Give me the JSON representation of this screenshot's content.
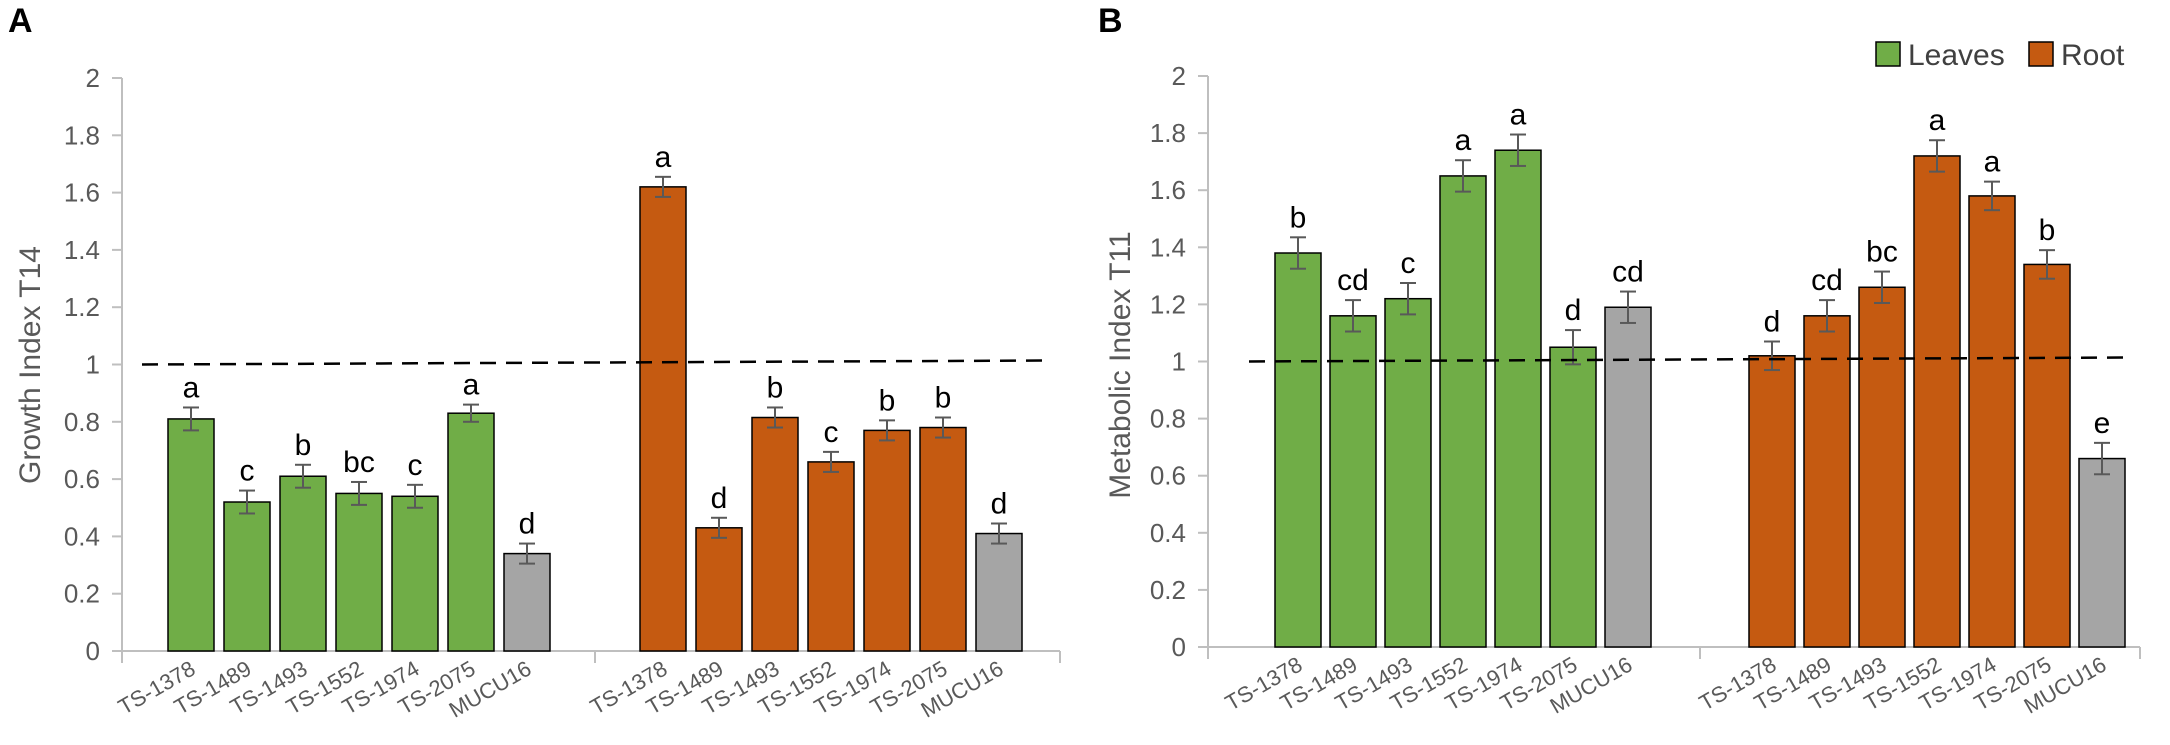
{
  "panels": [
    {
      "letter": "A"
    },
    {
      "letter": "B"
    }
  ],
  "legend": [
    {
      "label": "Leaves",
      "color": "#70AD47"
    },
    {
      "label": "Root",
      "color": "#C55A11"
    }
  ],
  "colors": {
    "leaves": "#70AD47",
    "root": "#C55A11",
    "control": "#A5A5A5",
    "error": "#595959"
  },
  "chart_data": [
    {
      "type": "bar",
      "panel": "A",
      "ylabel": "Growth Index T14",
      "ylim": [
        0,
        2
      ],
      "yticks": [
        "0",
        "0.2",
        "0.4",
        "0.6",
        "0.8",
        "1",
        "1.2",
        "1.4",
        "1.6",
        "1.8",
        "2"
      ],
      "reference_line": 1,
      "groups": [
        {
          "name": "Leaves",
          "categories": [
            "TS-1378",
            "TS-1489",
            "TS-1493",
            "TS-1552",
            "TS-1974",
            "TS-2075",
            "MUCU16"
          ],
          "values": [
            0.81,
            0.52,
            0.61,
            0.55,
            0.54,
            0.83,
            0.34
          ],
          "errors": [
            0.04,
            0.04,
            0.04,
            0.04,
            0.04,
            0.03,
            0.035
          ],
          "letters": [
            "a",
            "c",
            "b",
            "bc",
            "c",
            "a",
            "d"
          ],
          "bar_types": [
            "leaves",
            "leaves",
            "leaves",
            "leaves",
            "leaves",
            "leaves",
            "control"
          ]
        },
        {
          "name": "Root",
          "categories": [
            "TS-1378",
            "TS-1489",
            "TS-1493",
            "TS-1552",
            "TS-1974",
            "TS-2075",
            "MUCU16"
          ],
          "values": [
            1.62,
            0.43,
            0.815,
            0.66,
            0.77,
            0.78,
            0.41
          ],
          "errors": [
            0.035,
            0.035,
            0.035,
            0.035,
            0.035,
            0.035,
            0.035
          ],
          "letters": [
            "a",
            "d",
            "b",
            "c",
            "b",
            "b",
            "d"
          ],
          "bar_types": [
            "root",
            "root",
            "root",
            "root",
            "root",
            "root",
            "control"
          ]
        }
      ]
    },
    {
      "type": "bar",
      "panel": "B",
      "ylabel": "Metabolic Index T11",
      "ylim": [
        0,
        2
      ],
      "yticks": [
        "0",
        "0.2",
        "0.4",
        "0.6",
        "0.8",
        "1",
        "1.2",
        "1.4",
        "1.6",
        "1.8",
        "2"
      ],
      "reference_line": 1,
      "groups": [
        {
          "name": "Leaves",
          "categories": [
            "TS-1378",
            "TS-1489",
            "TS-1493",
            "TS-1552",
            "TS-1974",
            "TS-2075",
            "MUCU16"
          ],
          "values": [
            1.38,
            1.16,
            1.22,
            1.65,
            1.74,
            1.05,
            1.19
          ],
          "errors": [
            0.055,
            0.055,
            0.055,
            0.055,
            0.055,
            0.06,
            0.055
          ],
          "letters": [
            "b",
            "cd",
            "c",
            "a",
            "a",
            "d",
            "cd"
          ],
          "bar_types": [
            "leaves",
            "leaves",
            "leaves",
            "leaves",
            "leaves",
            "leaves",
            "control"
          ]
        },
        {
          "name": "Root",
          "categories": [
            "TS-1378",
            "TS-1489",
            "TS-1493",
            "TS-1552",
            "TS-1974",
            "TS-2075",
            "MUCU16"
          ],
          "values": [
            1.02,
            1.16,
            1.26,
            1.72,
            1.58,
            1.34,
            0.66
          ],
          "errors": [
            0.05,
            0.055,
            0.055,
            0.055,
            0.05,
            0.05,
            0.055
          ],
          "letters": [
            "d",
            "cd",
            "bc",
            "a",
            "a",
            "b",
            "e"
          ],
          "bar_types": [
            "root",
            "root",
            "root",
            "root",
            "root",
            "root",
            "control"
          ]
        }
      ]
    }
  ]
}
